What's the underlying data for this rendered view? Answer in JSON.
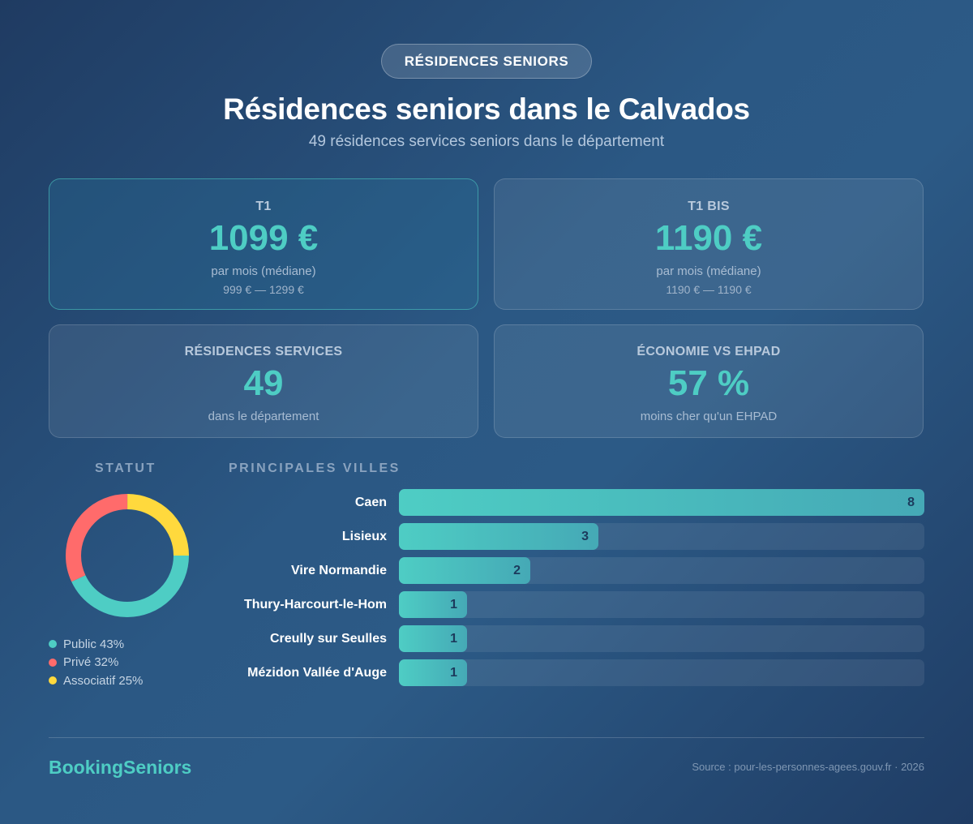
{
  "header": {
    "badge": "RÉSIDENCES SENIORS",
    "title": "Résidences seniors dans le Calvados",
    "subtitle": "49 résidences services seniors dans le département"
  },
  "cards": [
    {
      "label": "T1",
      "value": "1099 €",
      "desc": "par mois (médiane)",
      "range": "999 € — 1299 €",
      "highlight": true
    },
    {
      "label": "T1 BIS",
      "value": "1190 €",
      "desc": "par mois (médiane)",
      "range": "1190 € — 1190 €",
      "highlight": false
    },
    {
      "label": "RÉSIDENCES SERVICES",
      "value": "49",
      "desc": "dans le département"
    },
    {
      "label": "ÉCONOMIE VS EHPAD",
      "value": "57 %",
      "desc": "moins cher qu'un EHPAD"
    }
  ],
  "statut": {
    "title": "STATUT",
    "legend": [
      {
        "label": "Public 43%",
        "color": "#4ecdc4"
      },
      {
        "label": "Privé 32%",
        "color": "#ff6b6b"
      },
      {
        "label": "Associatif 25%",
        "color": "#ffd93d"
      }
    ]
  },
  "villes": {
    "title": "PRINCIPALES VILLES"
  },
  "chart_data": [
    {
      "type": "pie",
      "title": "STATUT",
      "style": "donut",
      "categories": [
        "Public",
        "Privé",
        "Associatif"
      ],
      "values": [
        43,
        32,
        25
      ],
      "colors": [
        "#4ecdc4",
        "#ff6b6b",
        "#ffd93d"
      ],
      "start_angle": "3 o'clock, clockwise",
      "legend_position": "bottom"
    },
    {
      "type": "bar",
      "orientation": "horizontal",
      "title": "PRINCIPALES VILLES",
      "categories": [
        "Caen",
        "Lisieux",
        "Vire Normandie",
        "Thury-Harcourt-le-Hom",
        "Creully sur Seulles",
        "Mézidon Vallée d'Auge"
      ],
      "values": [
        8,
        3,
        2,
        1,
        1,
        1
      ],
      "max": 8,
      "xlabel": "",
      "ylabel": "",
      "data_labels": true,
      "grid": false
    }
  ],
  "footer": {
    "brand": "BookingSeniors",
    "source": "Source : pour-les-personnes-agees.gouv.fr · 2026"
  }
}
